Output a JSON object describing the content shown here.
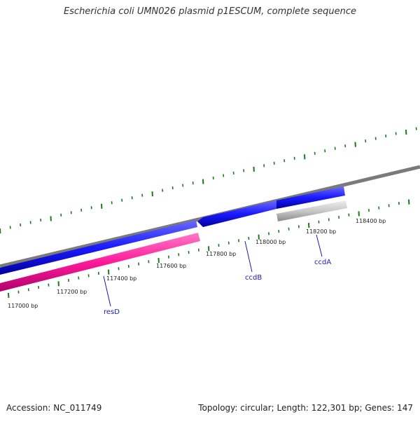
{
  "title": "Escherichia coli UMN026 plasmid p1ESCUM, complete sequence",
  "footer": {
    "accession": "Accession: NC_011749",
    "summary": "Topology: circular; Length: 122,301 bp; Genes: 147"
  },
  "colors": {
    "backbone": "#808080",
    "gene_forward": "#1a1aff",
    "gene_reverse_magenta": "#ff1a9a",
    "gene_reverse_gray": "#c8c8c8",
    "ticks": "#1a7a1a",
    "gene_label": "#1a1ab0"
  },
  "ruler": {
    "tick_labels": [
      "117000 bp",
      "117200 bp",
      "117400 bp",
      "117600 bp",
      "117800 bp",
      "118000 bp",
      "118200 bp",
      "118400 bp"
    ]
  },
  "genes": [
    {
      "name": "resD",
      "strand": "reverse",
      "color_key": "gene_reverse_magenta"
    },
    {
      "name": "ccdB",
      "strand": "forward",
      "color_key": "gene_forward"
    },
    {
      "name": "ccdA",
      "strand": "reverse",
      "color_key": "gene_reverse_gray"
    }
  ]
}
